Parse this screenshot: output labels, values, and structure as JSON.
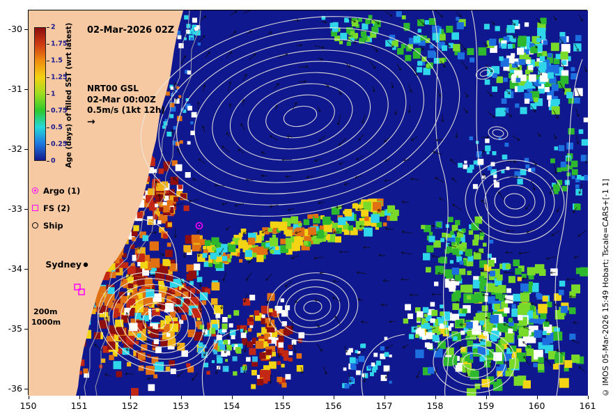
{
  "header": {
    "date": "02-Mar-2026 02Z"
  },
  "model": {
    "name": "NRT00 GSL",
    "time": "02-Mar 00:00Z",
    "scale": "0.5m/s (1kt 12h)",
    "arrow": "→"
  },
  "colorbar": {
    "label": "Age (days) of filled SST (wrt latest)",
    "ticks": [
      "2",
      "1.75",
      "1.5",
      "1.25",
      "1",
      "0.75",
      "0.5",
      "0.25",
      "0"
    ],
    "colors_top_to_bottom": [
      "#8b0e0e",
      "#cf3a14",
      "#ef8e10",
      "#f3d112",
      "#9cdc20",
      "#2ec82e",
      "#25d8d8",
      "#1e78e0",
      "#141a8c"
    ]
  },
  "legend": {
    "items": [
      {
        "label": "Argo (1)",
        "marker": "magenta-circle-dot",
        "color": "#ff00ff"
      },
      {
        "label": "FS (2)",
        "marker": "magenta-square",
        "color": "#ff00ff"
      },
      {
        "label": "Ship",
        "marker": "black-circle",
        "color": "#000000"
      }
    ]
  },
  "map": {
    "city": "Sydney",
    "depth_labels": [
      "200m",
      "1000m"
    ],
    "ocean_color": "#10188f",
    "land_color": "#f6c9a2",
    "contour_color": "#ece9df"
  },
  "axes": {
    "x_ticks": [
      "150",
      "151",
      "152",
      "153",
      "154",
      "155",
      "156",
      "157",
      "158",
      "159",
      "160",
      "161"
    ],
    "y_ticks": [
      "-30",
      "-31",
      "-32",
      "-33",
      "-34",
      "-35",
      "-36"
    ]
  },
  "credit": "© IMOS 05-Mar-2026 15:49 Hobart; Tscale=CARS+[-1 1]"
}
